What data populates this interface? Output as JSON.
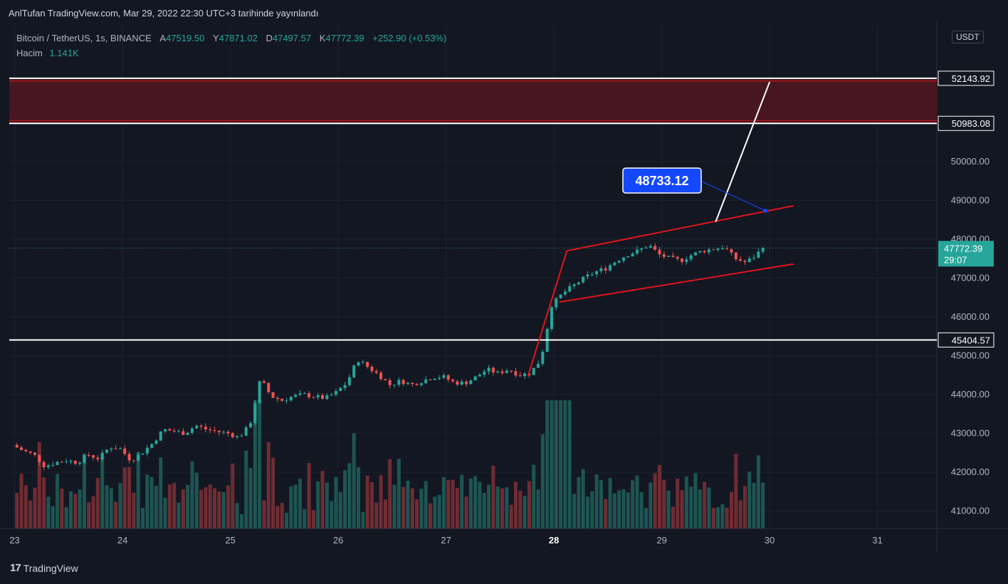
{
  "caption": "AnlTufan TradingView.com, Mar 29, 2022 22:30 UTC+3 tarihinde yayınlandı",
  "legend": {
    "symbol": "Bitcoin / TetherUS, 1s, BINANCE",
    "o_label": "A",
    "o_value": "47519.50",
    "h_label": "Y",
    "h_value": "47871.02",
    "l_label": "D",
    "l_value": "47497.57",
    "c_label": "K",
    "c_value": "47772.39",
    "change": "+252.90 (+0.53%)",
    "volume_label": "Hacim",
    "volume_value": "1.141K"
  },
  "currency_badge": "USDT",
  "footer_brand": "TradingView",
  "colors": {
    "background": "#131722",
    "up": "#26a69a",
    "down": "#ef5350",
    "zone_fill": "#4a1620",
    "channel": "#e0141e",
    "target_label": "#1448ff",
    "price_tag": "#26a69a"
  },
  "chart_data": {
    "type": "candlestick",
    "ylim": [
      40550,
      53500
    ],
    "y_ticks": [
      "41000.00",
      "42000.00",
      "43000.00",
      "44000.00",
      "45000.00",
      "46000.00",
      "47000.00",
      "48000.00",
      "49000.00",
      "50000.00"
    ],
    "x_ticks": [
      "23",
      "24",
      "25",
      "26",
      "27",
      "28",
      "29",
      "30",
      "31"
    ],
    "x_tick_values": [
      23,
      24,
      25,
      26,
      27,
      28,
      29,
      30,
      31
    ],
    "xlim": [
      22.95,
      31.55
    ],
    "current_price": 47772.39,
    "current_price_label": "47772.39",
    "countdown": "29:07",
    "horizontal_levels": [
      {
        "value": 52143.92,
        "label": "52143.92"
      },
      {
        "value": 50983.08,
        "label": "50983.08"
      },
      {
        "value": 45404.57,
        "label": "45404.57"
      }
    ],
    "resistance_zone": [
      50983.08,
      52143.92
    ],
    "target": {
      "value": 48733.12,
      "label": "48733.12",
      "x": 29.96
    },
    "channel_upper": [
      [
        28.12,
        47700
      ],
      [
        30.22,
        48860
      ]
    ],
    "channel_lower": [
      [
        28.05,
        46380
      ],
      [
        30.22,
        47360
      ]
    ],
    "flagpole": [
      [
        27.76,
        44480
      ],
      [
        28.12,
        47700
      ]
    ],
    "projection": [
      [
        29.5,
        48450
      ],
      [
        30.0,
        52050
      ]
    ],
    "price_path": [
      [
        23.0,
        42700
      ],
      [
        23.1,
        42550
      ],
      [
        23.2,
        42450
      ],
      [
        23.3,
        42150
      ],
      [
        23.4,
        42250
      ],
      [
        23.5,
        42300
      ],
      [
        23.6,
        42250
      ],
      [
        23.7,
        42450
      ],
      [
        23.8,
        42350
      ],
      [
        23.9,
        42650
      ],
      [
        24.0,
        42600
      ],
      [
        24.1,
        42300
      ],
      [
        24.2,
        42500
      ],
      [
        24.3,
        42750
      ],
      [
        24.4,
        43100
      ],
      [
        24.5,
        43050
      ],
      [
        24.6,
        43000
      ],
      [
        24.7,
        43200
      ],
      [
        24.8,
        43100
      ],
      [
        24.9,
        43050
      ],
      [
        25.0,
        43000
      ],
      [
        25.1,
        42900
      ],
      [
        25.2,
        43200
      ],
      [
        25.3,
        44400
      ],
      [
        25.4,
        43950
      ],
      [
        25.5,
        43850
      ],
      [
        25.6,
        43950
      ],
      [
        25.7,
        44000
      ],
      [
        25.8,
        43950
      ],
      [
        25.9,
        43900
      ],
      [
        26.0,
        44050
      ],
      [
        26.1,
        44300
      ],
      [
        26.2,
        44900
      ],
      [
        26.3,
        44700
      ],
      [
        26.4,
        44500
      ],
      [
        26.5,
        44250
      ],
      [
        26.6,
        44350
      ],
      [
        26.7,
        44250
      ],
      [
        26.8,
        44350
      ],
      [
        26.9,
        44450
      ],
      [
        27.0,
        44450
      ],
      [
        27.1,
        44300
      ],
      [
        27.2,
        44300
      ],
      [
        27.3,
        44450
      ],
      [
        27.4,
        44650
      ],
      [
        27.5,
        44550
      ],
      [
        27.6,
        44650
      ],
      [
        27.7,
        44500
      ],
      [
        27.8,
        44550
      ],
      [
        27.9,
        44900
      ],
      [
        28.0,
        46300
      ],
      [
        28.1,
        46600
      ],
      [
        28.2,
        46800
      ],
      [
        28.3,
        47000
      ],
      [
        28.4,
        47150
      ],
      [
        28.5,
        47250
      ],
      [
        28.6,
        47450
      ],
      [
        28.7,
        47600
      ],
      [
        28.8,
        47700
      ],
      [
        28.9,
        47850
      ],
      [
        29.0,
        47600
      ],
      [
        29.1,
        47500
      ],
      [
        29.2,
        47450
      ],
      [
        29.3,
        47600
      ],
      [
        29.4,
        47700
      ],
      [
        29.5,
        47750
      ],
      [
        29.6,
        47800
      ],
      [
        29.7,
        47500
      ],
      [
        29.8,
        47400
      ],
      [
        29.9,
        47600
      ],
      [
        29.95,
        47772
      ]
    ]
  }
}
